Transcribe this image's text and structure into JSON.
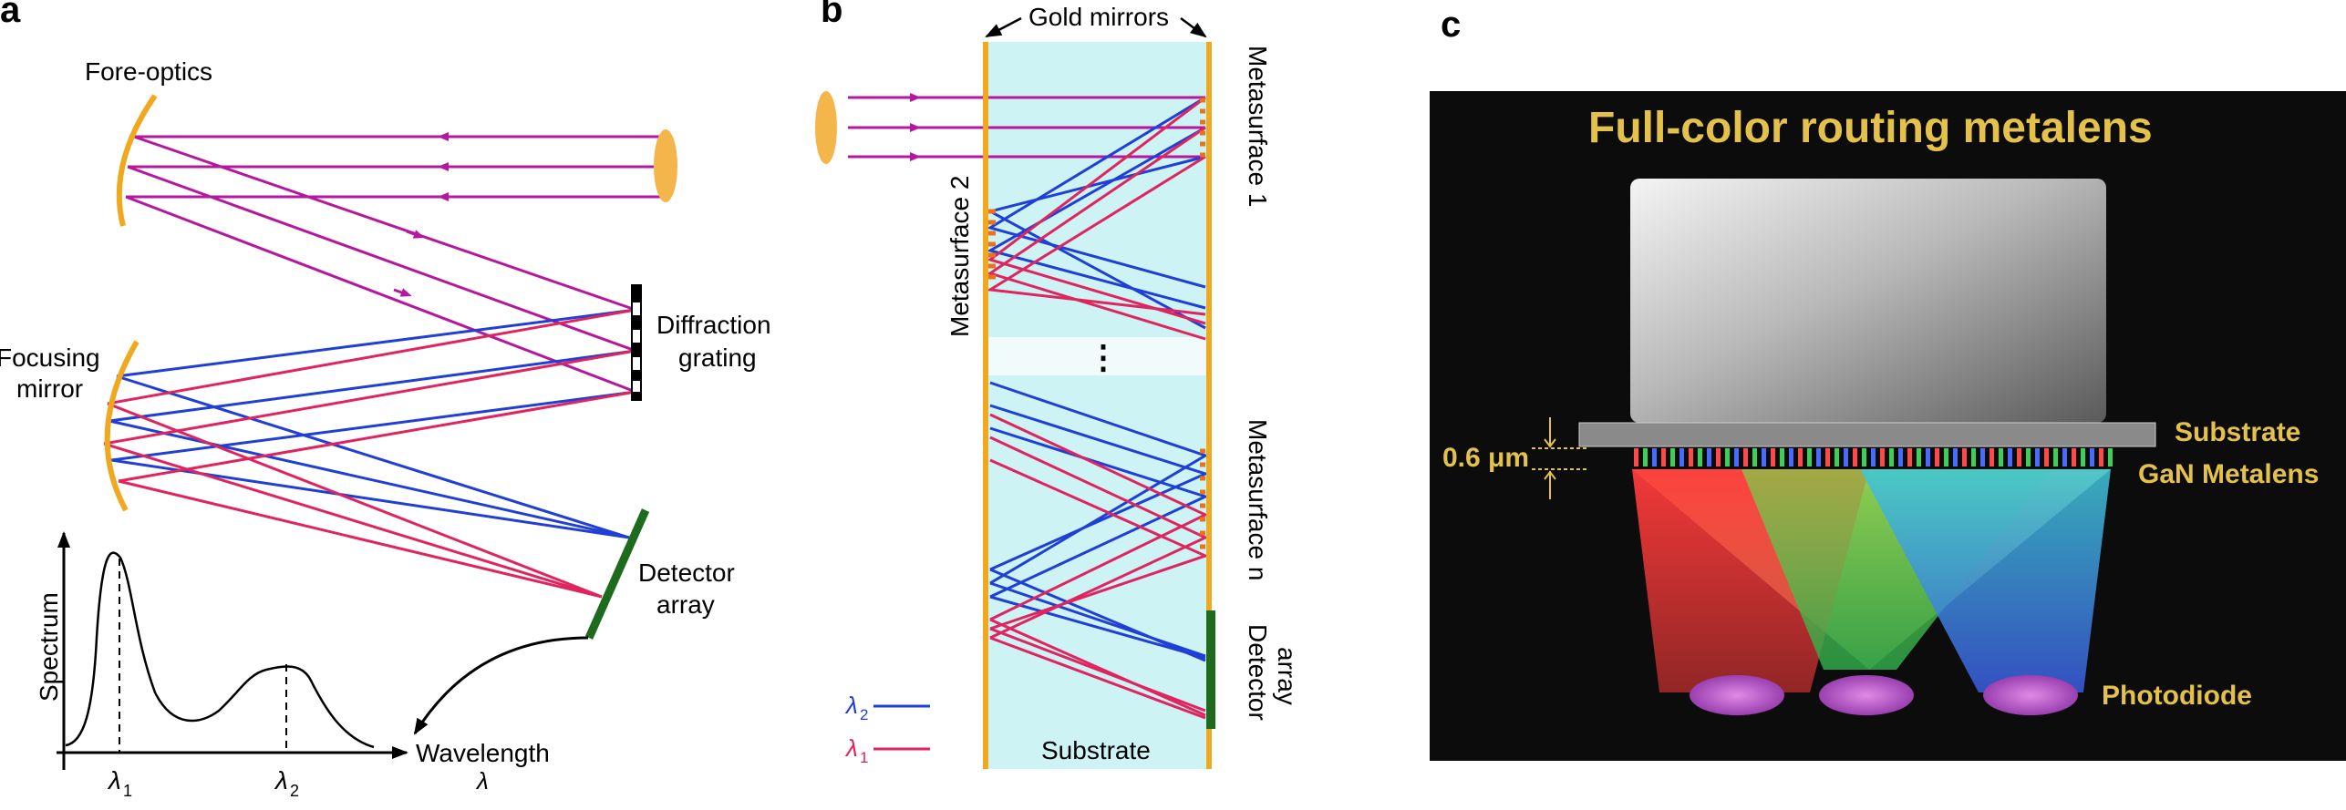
{
  "panels": {
    "a": {
      "letter": "a",
      "fore_optics": "Fore-optics",
      "focusing_mirror": [
        "Focusing",
        "mirror"
      ],
      "diffraction_grating": [
        "Diffraction",
        "grating"
      ],
      "detector_array": [
        "Detector",
        "array"
      ],
      "spectrum_axis": "Spectrum",
      "wavelength_axis": "Wavelength",
      "lambda_symbol": "λ",
      "lambda1": "λ",
      "lambda1_sub": "1",
      "lambda2": "λ",
      "lambda2_sub": "2"
    },
    "b": {
      "letter": "b",
      "gold_mirrors": "Gold mirrors",
      "metasurface_1": "Metasurface 1",
      "metasurface_2": "Metasurface 2",
      "metasurface_n": "Metasurface n",
      "detector_array": [
        "Detector",
        "array"
      ],
      "substrate": "Substrate",
      "ellipsis": "⋮",
      "legend_l2": "λ",
      "legend_l2_sub": "2",
      "legend_l1": "λ",
      "legend_l1_sub": "1"
    },
    "c": {
      "letter": "c",
      "title": "Full-color routing metalens",
      "substrate": "Substrate",
      "metalens": "GaN Metalens",
      "thickness": "0.6 μm",
      "photodiode": "Photodiode"
    }
  },
  "colors": {
    "purple": "#b5179e",
    "blue": "#1f3fd6",
    "red": "#e0245e",
    "gold": "#f0a81e",
    "green": "#1e6b1e",
    "substrate_fill": "#cdf3f5",
    "panel_c_bg": "#0c0c0c",
    "panel_c_text": "#e3c14a"
  }
}
